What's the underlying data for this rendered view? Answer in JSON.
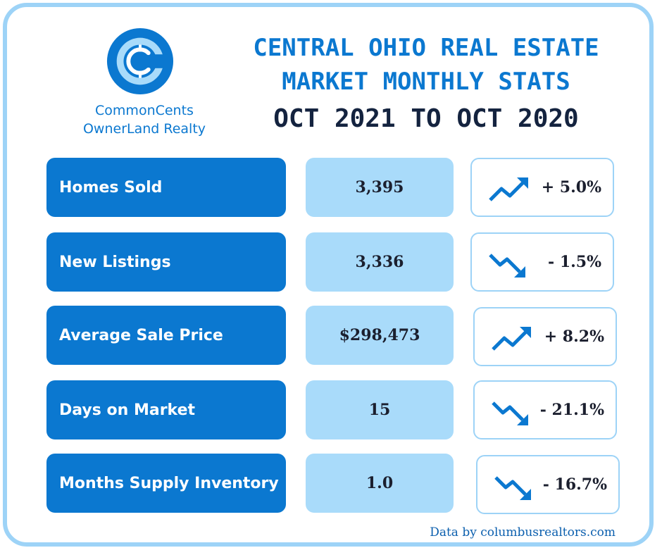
{
  "brand": {
    "logo_letter": "C",
    "name_line1": "CommonCents",
    "name_line2": "OwnerLand Realty"
  },
  "header": {
    "title_line1": "CENTRAL OHIO REAL ESTATE",
    "title_line2": "MARKET MONTHLY STATS",
    "title_line3": "OCT 2021 TO OCT 2020"
  },
  "stats": [
    {
      "label": "Homes Sold",
      "value": "3,395",
      "change": "+ 5.0%",
      "trend": "up"
    },
    {
      "label": "New Listings",
      "value": "3,336",
      "change": "- 1.5%",
      "trend": "down"
    },
    {
      "label": "Average Sale Price",
      "value": "$298,473",
      "change": "+ 8.2%",
      "trend": "up"
    },
    {
      "label": "Days on Market",
      "value": "15",
      "change": "- 21.1%",
      "trend": "down"
    },
    {
      "label": "Months Supply Inventory",
      "value": "1.0",
      "change": "- 16.7%",
      "trend": "down"
    }
  ],
  "footer": {
    "source": "Data by columbusrealtors.com"
  },
  "colors": {
    "primary": "#0b78d0",
    "light": "#a9dbfa",
    "border": "#9dd3f7",
    "dark": "#14233f"
  }
}
